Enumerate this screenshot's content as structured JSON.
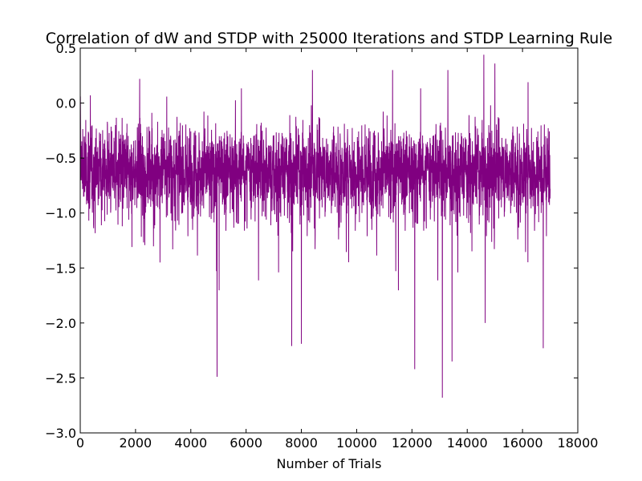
{
  "chart_data": {
    "type": "line",
    "title": "Correlation of dW and STDP with 25000 Iterations and STDP Learning Rule",
    "xlabel": "Number of Trials",
    "ylabel": "",
    "xlim": [
      0,
      18000
    ],
    "ylim": [
      -3.0,
      0.5
    ],
    "xticks": [
      0,
      2000,
      4000,
      6000,
      8000,
      10000,
      12000,
      14000,
      16000,
      18000
    ],
    "yticks": [
      0.5,
      0.0,
      -0.5,
      -1.0,
      -1.5,
      -2.0,
      -2.5,
      -3.0
    ],
    "xtick_labels": [
      "0",
      "2000",
      "4000",
      "6000",
      "8000",
      "10000",
      "12000",
      "14000",
      "16000",
      "18000"
    ],
    "ytick_labels": [
      "0.5",
      "0.0",
      "−0.5",
      "−1.0",
      "−1.5",
      "−2.0",
      "−2.5",
      "−3.0"
    ],
    "grid": false,
    "legend": "none",
    "series": [
      {
        "color": "#800080",
        "n_points": 17000,
        "x_range": [
          0,
          17000
        ],
        "typical_band": [
          -1.3,
          -0.05
        ],
        "mean": -0.62,
        "notable_minima": [
          {
            "x": 4950,
            "y": -2.49
          },
          {
            "x": 12100,
            "y": -2.42
          },
          {
            "x": 13100,
            "y": -2.68
          },
          {
            "x": 13450,
            "y": -2.35
          },
          {
            "x": 16750,
            "y": -2.23
          },
          {
            "x": 7650,
            "y": -2.21
          },
          {
            "x": 8000,
            "y": -2.19
          },
          {
            "x": 14650,
            "y": -2.0
          }
        ],
        "notable_maxima": [
          {
            "x": 14600,
            "y": 0.44
          },
          {
            "x": 15000,
            "y": 0.36
          },
          {
            "x": 8400,
            "y": 0.3
          },
          {
            "x": 11300,
            "y": 0.3
          },
          {
            "x": 13300,
            "y": 0.3
          },
          {
            "x": 2150,
            "y": 0.22
          },
          {
            "x": 16200,
            "y": 0.19
          }
        ]
      }
    ]
  }
}
